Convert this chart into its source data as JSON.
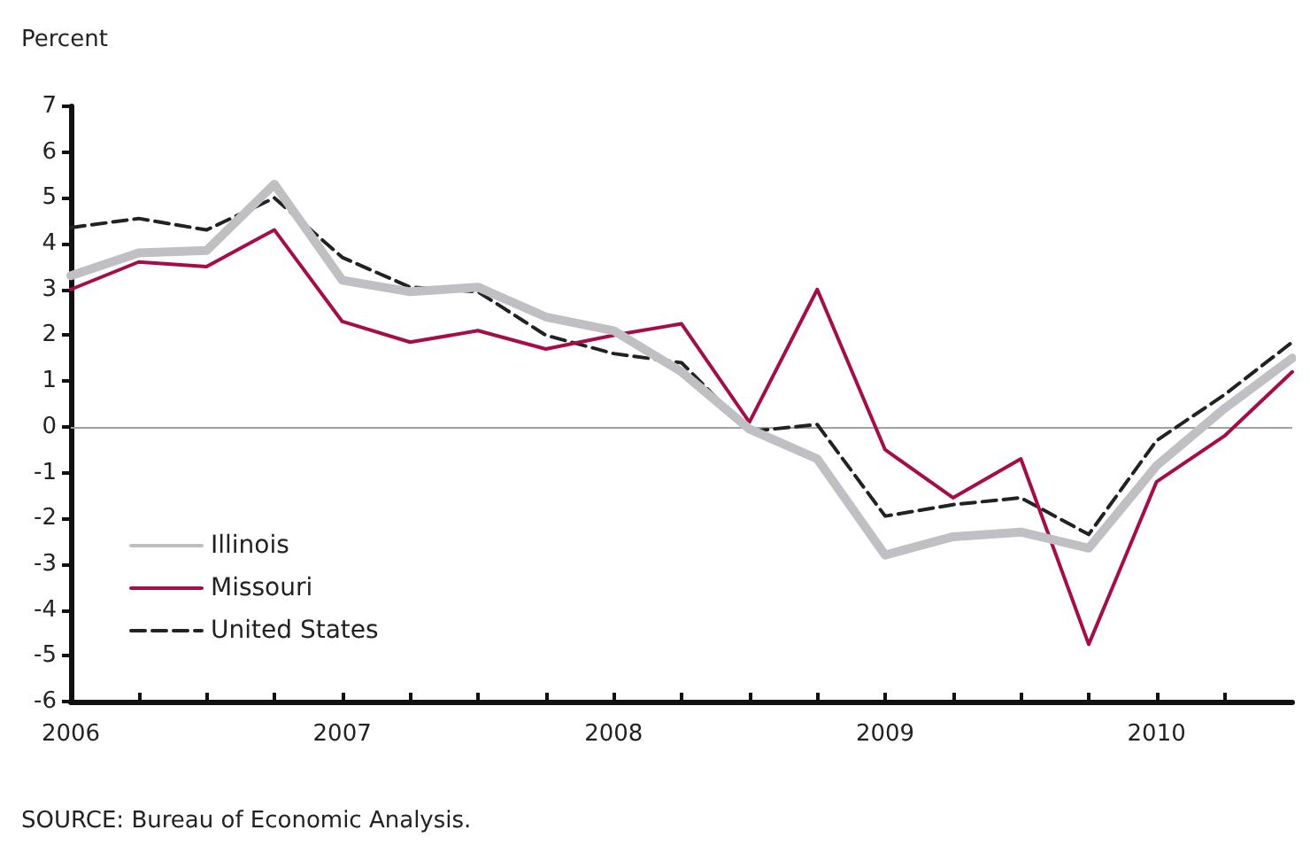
{
  "chart_data": {
    "type": "line",
    "ylabel": "Percent",
    "x": [
      2006,
      2006.25,
      2006.5,
      2006.75,
      2007,
      2007.25,
      2007.5,
      2007.75,
      2008,
      2008.25,
      2008.5,
      2008.75,
      2009,
      2009.25,
      2009.5,
      2009.75,
      2010,
      2010.25,
      2010.5
    ],
    "series": [
      {
        "name": "Illinois",
        "color": "#c0c0c4",
        "line_style": "solid",
        "values": [
          3.3,
          3.8,
          3.85,
          5.3,
          3.2,
          2.95,
          3.05,
          2.4,
          2.1,
          1.2,
          -0.05,
          -0.7,
          -2.8,
          -2.4,
          -2.3,
          -2.65,
          -0.85,
          0.4,
          1.5
        ]
      },
      {
        "name": "Missouri",
        "color": "#a50d4a",
        "line_style": "solid",
        "values": [
          3.0,
          3.6,
          3.5,
          4.3,
          2.3,
          1.85,
          2.1,
          1.7,
          2.0,
          2.25,
          0.1,
          3.0,
          -0.5,
          -1.55,
          -0.7,
          -4.75,
          -1.2,
          -0.2,
          1.2
        ]
      },
      {
        "name": "United States",
        "color": "#222222",
        "line_style": "dashed",
        "values": [
          4.35,
          4.55,
          4.3,
          5.0,
          3.7,
          3.05,
          2.95,
          2.0,
          1.6,
          1.4,
          -0.1,
          0.05,
          -1.95,
          -1.7,
          -1.55,
          -2.35,
          -0.3,
          0.7,
          1.85
        ]
      }
    ],
    "xlim": [
      2006,
      2010.5
    ],
    "xticks": [
      2006,
      {
        "value": 2006.25,
        "label": null
      },
      {
        "value": 2006.5,
        "label": null
      },
      {
        "value": 2006.75,
        "label": null
      },
      2007,
      {
        "value": 2007.25,
        "label": null
      },
      {
        "value": 2007.5,
        "label": null
      },
      {
        "value": 2007.75,
        "label": null
      },
      2008,
      {
        "value": 2008.25,
        "label": null
      },
      {
        "value": 2008.5,
        "label": null
      },
      {
        "value": 2008.75,
        "label": null
      },
      2009,
      {
        "value": 2009.25,
        "label": null
      },
      {
        "value": 2009.5,
        "label": null
      },
      {
        "value": 2009.75,
        "label": null
      },
      2010,
      {
        "value": 2010.25,
        "label": null
      }
    ],
    "ylim": [
      -6,
      7
    ],
    "yticks": [
      -6,
      -5,
      -4,
      -3,
      -2,
      -1,
      0,
      1,
      2,
      3,
      4,
      5,
      6,
      7
    ],
    "ref_lines": [
      {
        "axis": "y",
        "value": 0,
        "color": "#a0a0a0",
        "line_style": "solid"
      }
    ],
    "grid": false,
    "legend": "bottom left",
    "marker": "none",
    "annotations": [
      "SOURCE: Bureau of Economic Analysis."
    ]
  }
}
